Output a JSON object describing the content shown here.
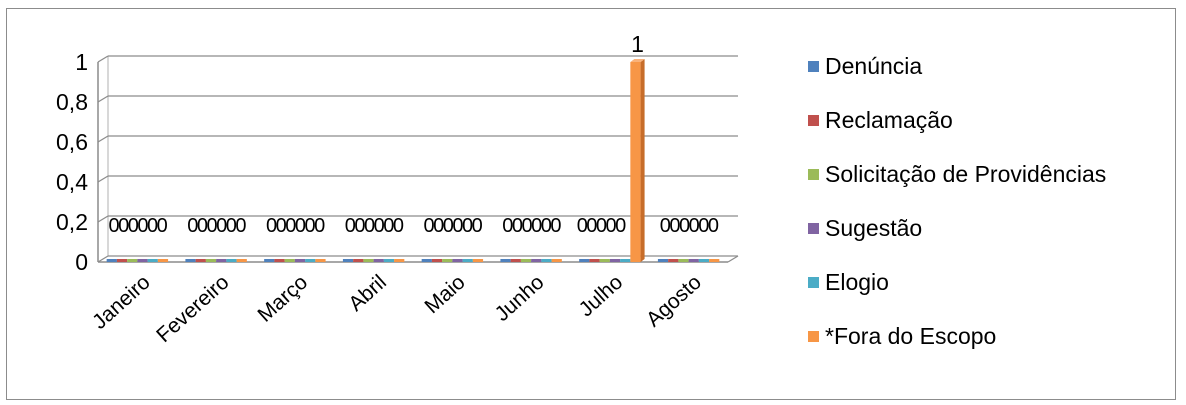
{
  "chart_data": {
    "type": "bar",
    "categories": [
      "Janeiro",
      "Fevereiro",
      "Março",
      "Abril",
      "Maio",
      "Junho",
      "Julho",
      "Agosto"
    ],
    "series": [
      {
        "name": "Denúncia",
        "color": "#4f81bd",
        "values": [
          0,
          0,
          0,
          0,
          0,
          0,
          0,
          0
        ]
      },
      {
        "name": "Reclamação",
        "color": "#c0504d",
        "values": [
          0,
          0,
          0,
          0,
          0,
          0,
          0,
          0
        ]
      },
      {
        "name": "Solicitação de Providências",
        "color": "#9bbb59",
        "values": [
          0,
          0,
          0,
          0,
          0,
          0,
          0,
          0
        ]
      },
      {
        "name": "Sugestão",
        "color": "#8064a2",
        "values": [
          0,
          0,
          0,
          0,
          0,
          0,
          0,
          0
        ]
      },
      {
        "name": "Elogio",
        "color": "#4bacc6",
        "values": [
          0,
          0,
          0,
          0,
          0,
          0,
          0,
          0
        ]
      },
      {
        "name": "*Fora do Escopo",
        "color": "#f79646",
        "values": [
          0,
          0,
          0,
          0,
          0,
          0,
          1,
          0
        ]
      }
    ],
    "y_ticks": [
      "0",
      "0,2",
      "0,4",
      "0,6",
      "0,8",
      "1"
    ],
    "ylim": [
      0,
      1
    ],
    "grid": true,
    "legend_position": "right",
    "data_labels": true,
    "title": "",
    "xlabel": "",
    "ylabel": ""
  }
}
